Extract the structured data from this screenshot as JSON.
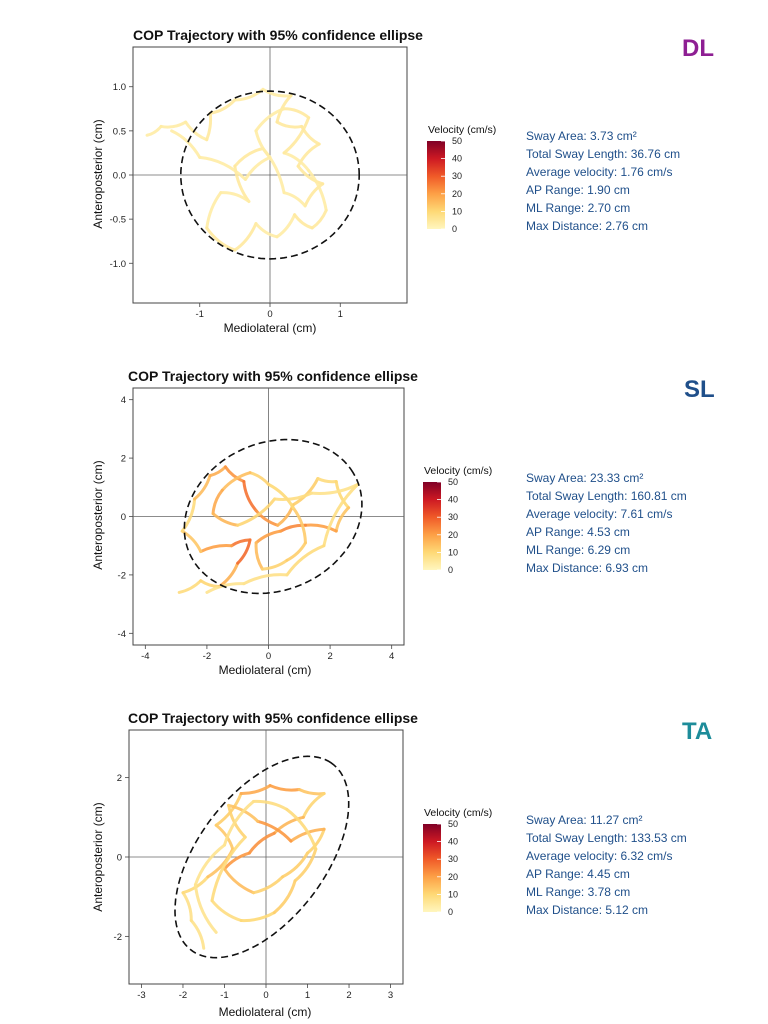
{
  "chart_data": [
    {
      "type": "line",
      "title": "COP Trajectory with 95% confidence ellipse",
      "tag": "DL",
      "tag_color": "#8e1f93",
      "xlabel": "Mediolateral (cm)",
      "ylabel": "Anteroposterior (cm)",
      "xlim": [
        -1.95,
        1.95
      ],
      "ylim": [
        -1.45,
        1.45
      ],
      "xticks": [
        -1,
        0,
        1
      ],
      "yticks": [
        -1.0,
        -0.5,
        0.0,
        0.5,
        1.0
      ],
      "ytick_labels": [
        "-1.0",
        "-0.5",
        "0.0",
        "0.5",
        "1.0"
      ],
      "ellipse": {
        "cx": 0.0,
        "cy": 0.0,
        "rx": 1.27,
        "ry": 0.95,
        "angle_deg": 0
      },
      "legend": {
        "title": "Velocity (cm/s)",
        "ticks": [
          0,
          10,
          20,
          30,
          40,
          50
        ],
        "placement": "right"
      },
      "stats": [
        "Sway Area: 3.73 cm²",
        "Total Sway Length: 36.76 cm",
        "Average velocity: 1.76 cm/s",
        "AP Range: 1.90 cm",
        "ML Range: 2.70 cm",
        "Max Distance: 2.76 cm"
      ],
      "trajectory": [
        {
          "x": -1.75,
          "y": 0.45,
          "v": 3
        },
        {
          "x": -1.55,
          "y": 0.55,
          "v": 4
        },
        {
          "x": -1.2,
          "y": 0.6,
          "v": 3
        },
        {
          "x": -0.9,
          "y": 0.4,
          "v": 4
        },
        {
          "x": -0.85,
          "y": 0.7,
          "v": 5
        },
        {
          "x": -0.5,
          "y": 0.85,
          "v": 4
        },
        {
          "x": -0.1,
          "y": 0.97,
          "v": 3
        },
        {
          "x": 0.3,
          "y": 0.9,
          "v": 4
        },
        {
          "x": 0.1,
          "y": 0.6,
          "v": 5
        },
        {
          "x": 0.45,
          "y": 0.55,
          "v": 4
        },
        {
          "x": 0.7,
          "y": 0.35,
          "v": 5
        },
        {
          "x": 0.4,
          "y": 0.1,
          "v": 4
        },
        {
          "x": 0.75,
          "y": -0.1,
          "v": 5
        },
        {
          "x": 0.5,
          "y": -0.35,
          "v": 4
        },
        {
          "x": 0.2,
          "y": -0.2,
          "v": 3
        },
        {
          "x": -0.1,
          "y": 0.3,
          "v": 4
        },
        {
          "x": -0.5,
          "y": 0.1,
          "v": 5
        },
        {
          "x": -0.3,
          "y": -0.3,
          "v": 4
        },
        {
          "x": -0.7,
          "y": -0.2,
          "v": 3
        },
        {
          "x": -0.9,
          "y": -0.6,
          "v": 4
        },
        {
          "x": -0.5,
          "y": -0.85,
          "v": 5
        },
        {
          "x": -0.2,
          "y": -0.55,
          "v": 4
        },
        {
          "x": 0.1,
          "y": -0.7,
          "v": 3
        },
        {
          "x": 0.35,
          "y": -0.45,
          "v": 4
        },
        {
          "x": 0.6,
          "y": -0.6,
          "v": 5
        },
        {
          "x": 0.8,
          "y": -0.4,
          "v": 4
        },
        {
          "x": 0.55,
          "y": 0.05,
          "v": 3
        },
        {
          "x": 0.2,
          "y": 0.25,
          "v": 4
        },
        {
          "x": 0.55,
          "y": 0.65,
          "v": 5
        },
        {
          "x": 0.2,
          "y": 0.75,
          "v": 4
        },
        {
          "x": -0.2,
          "y": 0.5,
          "v": 3
        },
        {
          "x": 0.0,
          "y": 0.2,
          "v": 4
        },
        {
          "x": -0.35,
          "y": -0.05,
          "v": 3
        },
        {
          "x": -1.0,
          "y": 0.2,
          "v": 4
        },
        {
          "x": -1.4,
          "y": 0.5,
          "v": 3
        }
      ]
    },
    {
      "type": "line",
      "title": "COP Trajectory with 95% confidence ellipse",
      "tag": "SL",
      "tag_color": "#1f4f8a",
      "xlabel": "Mediolateral (cm)",
      "ylabel": "Anteroposterior (cm)",
      "xlim": [
        -4.4,
        4.4
      ],
      "ylim": [
        -4.4,
        4.4
      ],
      "xticks": [
        -4,
        -2,
        0,
        2,
        4
      ],
      "yticks": [
        -4,
        -2,
        0,
        2,
        4
      ],
      "ytick_labels": [
        "-4",
        "-2",
        "0",
        "2",
        "4"
      ],
      "ellipse": {
        "cx": 0.15,
        "cy": 0.0,
        "rx": 3.0,
        "ry": 2.5,
        "angle_deg": 30
      },
      "legend": {
        "title": "Velocity (cm/s)",
        "ticks": [
          0,
          10,
          20,
          30,
          40,
          50
        ],
        "placement": "right"
      },
      "stats": [
        "Sway Area: 23.33 cm²",
        "Total Sway Length: 160.81 cm",
        "Average velocity: 7.61 cm/s",
        "AP Range: 4.53 cm",
        "ML Range: 6.29 cm",
        "Max Distance: 6.93 cm"
      ],
      "trajectory": [
        {
          "x": -2.9,
          "y": -2.6,
          "v": 6
        },
        {
          "x": -2.2,
          "y": -2.2,
          "v": 12
        },
        {
          "x": -1.6,
          "y": -2.4,
          "v": 9
        },
        {
          "x": -1.0,
          "y": -1.6,
          "v": 25
        },
        {
          "x": -0.6,
          "y": -0.8,
          "v": 30
        },
        {
          "x": -1.2,
          "y": -1.0,
          "v": 22
        },
        {
          "x": -2.2,
          "y": -1.2,
          "v": 18
        },
        {
          "x": -2.8,
          "y": -0.5,
          "v": 8
        },
        {
          "x": -2.4,
          "y": 0.6,
          "v": 10
        },
        {
          "x": -1.9,
          "y": 1.4,
          "v": 20
        },
        {
          "x": -1.4,
          "y": 1.7,
          "v": 15
        },
        {
          "x": -0.8,
          "y": 1.2,
          "v": 28
        },
        {
          "x": -0.4,
          "y": 0.2,
          "v": 25
        },
        {
          "x": 0.3,
          "y": -0.3,
          "v": 18
        },
        {
          "x": 0.8,
          "y": 0.4,
          "v": 14
        },
        {
          "x": 1.6,
          "y": 1.3,
          "v": 10
        },
        {
          "x": 2.2,
          "y": 1.2,
          "v": 8
        },
        {
          "x": 2.6,
          "y": 0.3,
          "v": 12
        },
        {
          "x": 2.2,
          "y": -0.5,
          "v": 15
        },
        {
          "x": 1.2,
          "y": -0.3,
          "v": 25
        },
        {
          "x": 0.4,
          "y": -0.5,
          "v": 22
        },
        {
          "x": -0.4,
          "y": -0.9,
          "v": 18
        },
        {
          "x": -0.2,
          "y": -1.8,
          "v": 12
        },
        {
          "x": 0.6,
          "y": -1.5,
          "v": 10
        },
        {
          "x": 1.2,
          "y": -0.9,
          "v": 14
        },
        {
          "x": 0.8,
          "y": 0.3,
          "v": 11
        },
        {
          "x": 0.0,
          "y": 1.1,
          "v": 9
        },
        {
          "x": -0.6,
          "y": 1.5,
          "v": 13
        },
        {
          "x": -1.5,
          "y": 0.9,
          "v": 16
        },
        {
          "x": -1.8,
          "y": 0.1,
          "v": 20
        },
        {
          "x": -1.0,
          "y": -0.3,
          "v": 12
        },
        {
          "x": 0.2,
          "y": 0.6,
          "v": 9
        },
        {
          "x": 1.4,
          "y": 0.8,
          "v": 8
        },
        {
          "x": 2.9,
          "y": 1.1,
          "v": 6
        },
        {
          "x": 1.8,
          "y": -1.0,
          "v": 10
        },
        {
          "x": 0.6,
          "y": -2.0,
          "v": 8
        },
        {
          "x": -0.8,
          "y": -2.3,
          "v": 7
        },
        {
          "x": -2.0,
          "y": -2.6,
          "v": 6
        }
      ]
    },
    {
      "type": "line",
      "title": "COP Trajectory with 95% confidence ellipse",
      "tag": "TA",
      "tag_color": "#1d8c9a",
      "xlabel": "Mediolateral (cm)",
      "ylabel": "Anteroposterior (cm)",
      "xlim": [
        -3.3,
        3.3
      ],
      "ylim": [
        -3.2,
        3.2
      ],
      "xticks": [
        -3,
        -2,
        -1,
        0,
        1,
        2,
        3
      ],
      "yticks": [
        -2,
        0,
        2
      ],
      "ytick_labels": [
        "-2",
        "0",
        "2"
      ],
      "ellipse": {
        "cx": -0.1,
        "cy": 0.0,
        "rx": 2.9,
        "ry": 1.55,
        "angle_deg": 55
      },
      "legend": {
        "title": "Velocity (cm/s)",
        "ticks": [
          0,
          10,
          20,
          30,
          40,
          50
        ],
        "placement": "right"
      },
      "stats": [
        "Sway Area: 11.27 cm²",
        "Total Sway Length: 133.53 cm",
        "Average velocity: 6.32 cm/s",
        "AP Range: 4.45 cm",
        "ML Range: 3.78 cm",
        "Max Distance: 5.12 cm"
      ],
      "trajectory": [
        {
          "x": -1.5,
          "y": -2.3,
          "v": 6
        },
        {
          "x": -1.8,
          "y": -1.6,
          "v": 8
        },
        {
          "x": -2.0,
          "y": -0.9,
          "v": 7
        },
        {
          "x": -1.4,
          "y": -0.5,
          "v": 12
        },
        {
          "x": -0.8,
          "y": 0.2,
          "v": 16
        },
        {
          "x": -1.2,
          "y": 0.8,
          "v": 10
        },
        {
          "x": -0.6,
          "y": 1.6,
          "v": 14
        },
        {
          "x": 0.1,
          "y": 1.8,
          "v": 22
        },
        {
          "x": 0.8,
          "y": 1.7,
          "v": 18
        },
        {
          "x": 1.4,
          "y": 1.6,
          "v": 9
        },
        {
          "x": 0.9,
          "y": 1.0,
          "v": 12
        },
        {
          "x": 0.2,
          "y": 0.6,
          "v": 20
        },
        {
          "x": -0.4,
          "y": 0.1,
          "v": 24
        },
        {
          "x": -1.0,
          "y": -0.3,
          "v": 18
        },
        {
          "x": -0.3,
          "y": -0.9,
          "v": 12
        },
        {
          "x": 0.4,
          "y": -0.5,
          "v": 10
        },
        {
          "x": 1.0,
          "y": 0.1,
          "v": 14
        },
        {
          "x": 1.4,
          "y": 0.7,
          "v": 8
        },
        {
          "x": 0.6,
          "y": 0.4,
          "v": 26
        },
        {
          "x": -0.2,
          "y": 0.9,
          "v": 16
        },
        {
          "x": -0.9,
          "y": 1.3,
          "v": 12
        },
        {
          "x": -0.5,
          "y": 0.5,
          "v": 10
        },
        {
          "x": -1.3,
          "y": -1.1,
          "v": 8
        },
        {
          "x": -0.6,
          "y": -1.6,
          "v": 9
        },
        {
          "x": 0.2,
          "y": -1.4,
          "v": 11
        },
        {
          "x": 0.7,
          "y": -0.6,
          "v": 13
        },
        {
          "x": 1.2,
          "y": 0.2,
          "v": 10
        },
        {
          "x": 0.5,
          "y": 1.2,
          "v": 9
        },
        {
          "x": -0.3,
          "y": 1.4,
          "v": 8
        },
        {
          "x": -1.0,
          "y": 0.3,
          "v": 7
        },
        {
          "x": -1.7,
          "y": -0.7,
          "v": 6
        },
        {
          "x": -1.2,
          "y": -1.9,
          "v": 7
        }
      ]
    }
  ]
}
